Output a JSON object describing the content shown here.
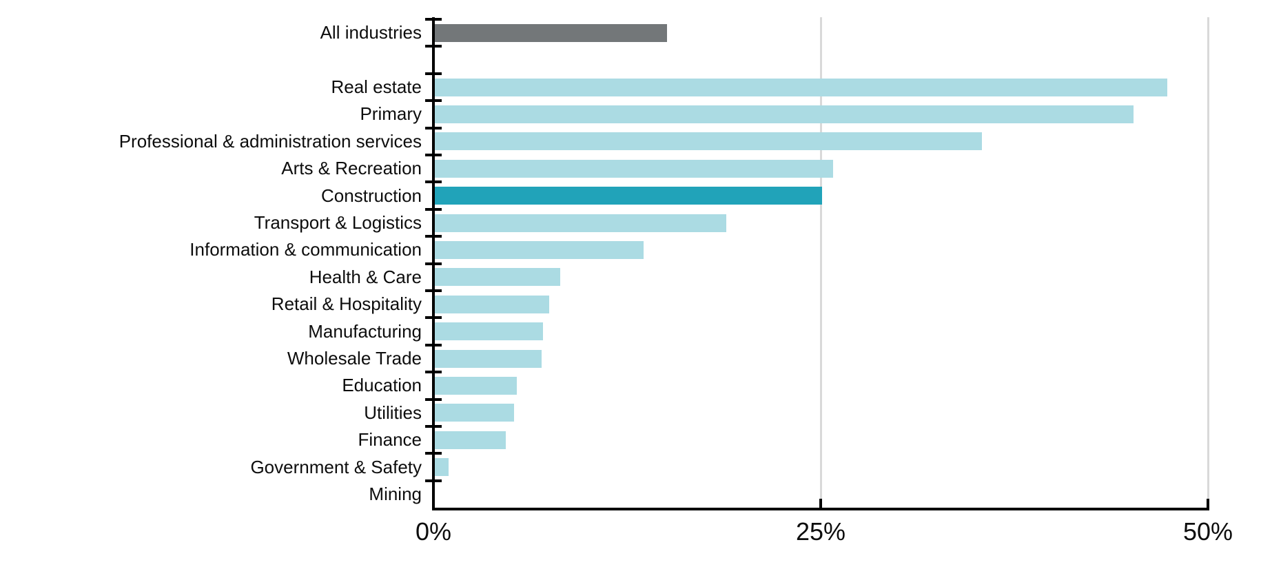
{
  "chart_data": {
    "type": "bar",
    "orientation": "horizontal",
    "title": "",
    "xlabel": "",
    "ylabel": "",
    "xlim": [
      0,
      50
    ],
    "grid": true,
    "legend": "none",
    "xticks": [
      {
        "label": "0%",
        "value": 0
      },
      {
        "label": "25%",
        "value": 25
      },
      {
        "label": "50%",
        "value": 50
      }
    ],
    "colors": {
      "default": "#abdbe3",
      "highlight": "#21a3b9",
      "summary": "#737779",
      "axis": "#000000",
      "gridline": "#d9d9d9"
    },
    "highlighted_category": "Construction",
    "rows": [
      {
        "label": "All industries",
        "value": 15.0,
        "role": "summary"
      },
      {
        "label": "",
        "value": null,
        "role": "spacer"
      },
      {
        "label": "Real estate",
        "value": 47.3,
        "role": "default"
      },
      {
        "label": "Primary",
        "value": 45.1,
        "role": "default"
      },
      {
        "label": "Professional & administration services",
        "value": 35.3,
        "role": "default"
      },
      {
        "label": "Arts & Recreation",
        "value": 25.7,
        "role": "default"
      },
      {
        "label": "Construction",
        "value": 25.0,
        "role": "highlight"
      },
      {
        "label": "Transport & Logistics",
        "value": 18.8,
        "role": "default"
      },
      {
        "label": "Information & communication",
        "value": 13.5,
        "role": "default"
      },
      {
        "label": "Health & Care",
        "value": 8.1,
        "role": "default"
      },
      {
        "label": "Retail & Hospitality",
        "value": 7.4,
        "role": "default"
      },
      {
        "label": "Manufacturing",
        "value": 7.0,
        "role": "default"
      },
      {
        "label": "Wholesale Trade",
        "value": 6.9,
        "role": "default"
      },
      {
        "label": "Education",
        "value": 5.3,
        "role": "default"
      },
      {
        "label": "Utilities",
        "value": 5.1,
        "role": "default"
      },
      {
        "label": "Finance",
        "value": 4.6,
        "role": "default"
      },
      {
        "label": "Government & Safety",
        "value": 0.9,
        "role": "default"
      },
      {
        "label": "Mining",
        "value": 0.0,
        "role": "default"
      }
    ]
  }
}
